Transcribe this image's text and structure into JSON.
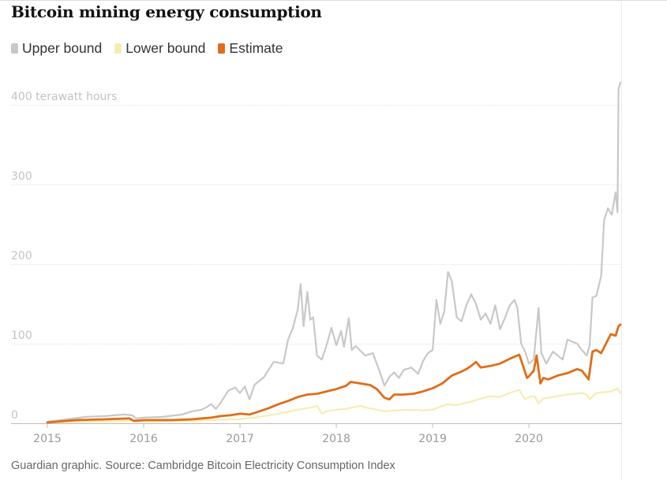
{
  "title": "Bitcoin mining energy consumption",
  "source": "Guardian graphic. Source: Cambridge Bitcoin Electricity Consumption Index",
  "chart_data": {
    "type": "line",
    "title": "Bitcoin mining energy consumption",
    "xlabel": "",
    "ylabel": "terawatt hours",
    "xlim": [
      2015.0,
      2020.95
    ],
    "ylim": [
      0,
      400
    ],
    "grid": true,
    "legend_position": "top-left",
    "y_ticks": [
      {
        "value": 0,
        "label": "0"
      },
      {
        "value": 100,
        "label": "100"
      },
      {
        "value": 200,
        "label": "200"
      },
      {
        "value": 300,
        "label": "300"
      },
      {
        "value": 400,
        "label": "400 terawatt hours"
      }
    ],
    "x_ticks": [
      {
        "value": 2015,
        "label": "2015"
      },
      {
        "value": 2016,
        "label": "2016"
      },
      {
        "value": 2017,
        "label": "2017"
      },
      {
        "value": 2018,
        "label": "2018"
      },
      {
        "value": 2019,
        "label": "2019"
      },
      {
        "value": 2020,
        "label": "2020"
      }
    ],
    "series": [
      {
        "name": "Upper bound",
        "color": "#c8c8c8",
        "points": [
          [
            2015.0,
            2
          ],
          [
            2015.2,
            5
          ],
          [
            2015.4,
            8
          ],
          [
            2015.6,
            9
          ],
          [
            2015.8,
            11
          ],
          [
            2015.88,
            10
          ],
          [
            2015.92,
            6
          ],
          [
            2016.0,
            7
          ],
          [
            2016.2,
            8
          ],
          [
            2016.4,
            11
          ],
          [
            2016.5,
            15
          ],
          [
            2016.6,
            17
          ],
          [
            2016.65,
            20
          ],
          [
            2016.7,
            24
          ],
          [
            2016.75,
            18
          ],
          [
            2016.8,
            26
          ],
          [
            2016.88,
            41
          ],
          [
            2016.95,
            45
          ],
          [
            2017.0,
            38
          ],
          [
            2017.05,
            46
          ],
          [
            2017.1,
            30
          ],
          [
            2017.15,
            48
          ],
          [
            2017.25,
            58
          ],
          [
            2017.35,
            77
          ],
          [
            2017.45,
            75
          ],
          [
            2017.5,
            105
          ],
          [
            2017.55,
            120
          ],
          [
            2017.6,
            143
          ],
          [
            2017.63,
            175
          ],
          [
            2017.66,
            122
          ],
          [
            2017.7,
            165
          ],
          [
            2017.73,
            130
          ],
          [
            2017.76,
            133
          ],
          [
            2017.8,
            85
          ],
          [
            2017.85,
            80
          ],
          [
            2017.9,
            98
          ],
          [
            2017.95,
            120
          ],
          [
            2018.0,
            98
          ],
          [
            2018.05,
            116
          ],
          [
            2018.08,
            96
          ],
          [
            2018.13,
            132
          ],
          [
            2018.16,
            92
          ],
          [
            2018.2,
            97
          ],
          [
            2018.3,
            85
          ],
          [
            2018.38,
            88
          ],
          [
            2018.45,
            65
          ],
          [
            2018.5,
            47
          ],
          [
            2018.55,
            58
          ],
          [
            2018.6,
            64
          ],
          [
            2018.65,
            57
          ],
          [
            2018.7,
            67
          ],
          [
            2018.78,
            70
          ],
          [
            2018.85,
            62
          ],
          [
            2018.9,
            78
          ],
          [
            2018.95,
            88
          ],
          [
            2019.0,
            92
          ],
          [
            2019.04,
            155
          ],
          [
            2019.08,
            125
          ],
          [
            2019.12,
            140
          ],
          [
            2019.16,
            190
          ],
          [
            2019.2,
            178
          ],
          [
            2019.25,
            133
          ],
          [
            2019.3,
            128
          ],
          [
            2019.35,
            148
          ],
          [
            2019.4,
            162
          ],
          [
            2019.45,
            150
          ],
          [
            2019.5,
            130
          ],
          [
            2019.55,
            138
          ],
          [
            2019.6,
            125
          ],
          [
            2019.65,
            148
          ],
          [
            2019.7,
            118
          ],
          [
            2019.75,
            132
          ],
          [
            2019.8,
            148
          ],
          [
            2019.85,
            155
          ],
          [
            2019.88,
            145
          ],
          [
            2019.92,
            100
          ],
          [
            2019.96,
            90
          ],
          [
            2020.0,
            75
          ],
          [
            2020.05,
            80
          ],
          [
            2020.1,
            145
          ],
          [
            2020.13,
            88
          ],
          [
            2020.18,
            75
          ],
          [
            2020.25,
            90
          ],
          [
            2020.35,
            80
          ],
          [
            2020.4,
            105
          ],
          [
            2020.5,
            100
          ],
          [
            2020.55,
            92
          ],
          [
            2020.6,
            85
          ],
          [
            2020.63,
            98
          ],
          [
            2020.66,
            158
          ],
          [
            2020.7,
            160
          ],
          [
            2020.75,
            185
          ],
          [
            2020.78,
            255
          ],
          [
            2020.82,
            270
          ],
          [
            2020.86,
            262
          ],
          [
            2020.9,
            290
          ],
          [
            2020.92,
            265
          ],
          [
            2020.93,
            420
          ],
          [
            2020.95,
            428
          ]
        ]
      },
      {
        "name": "Lower bound",
        "color": "#f6edb2",
        "points": [
          [
            2015.0,
            1
          ],
          [
            2015.5,
            2
          ],
          [
            2015.88,
            3
          ],
          [
            2015.92,
            2
          ],
          [
            2016.0,
            2
          ],
          [
            2016.5,
            3
          ],
          [
            2016.7,
            4
          ],
          [
            2016.9,
            5
          ],
          [
            2017.0,
            5
          ],
          [
            2017.2,
            8
          ],
          [
            2017.4,
            12
          ],
          [
            2017.6,
            17
          ],
          [
            2017.75,
            20
          ],
          [
            2017.8,
            22
          ],
          [
            2017.85,
            12
          ],
          [
            2017.9,
            15
          ],
          [
            2018.0,
            17
          ],
          [
            2018.1,
            18
          ],
          [
            2018.25,
            22
          ],
          [
            2018.3,
            20
          ],
          [
            2018.5,
            15
          ],
          [
            2018.6,
            16
          ],
          [
            2018.8,
            17
          ],
          [
            2018.9,
            16
          ],
          [
            2019.0,
            17
          ],
          [
            2019.15,
            24
          ],
          [
            2019.25,
            23
          ],
          [
            2019.4,
            27
          ],
          [
            2019.5,
            31
          ],
          [
            2019.6,
            34
          ],
          [
            2019.7,
            33
          ],
          [
            2019.8,
            38
          ],
          [
            2019.9,
            42
          ],
          [
            2019.96,
            30
          ],
          [
            2020.0,
            33
          ],
          [
            2020.06,
            34
          ],
          [
            2020.1,
            25
          ],
          [
            2020.15,
            31
          ],
          [
            2020.25,
            33
          ],
          [
            2020.4,
            36
          ],
          [
            2020.55,
            38
          ],
          [
            2020.6,
            36
          ],
          [
            2020.63,
            30
          ],
          [
            2020.7,
            38
          ],
          [
            2020.85,
            40
          ],
          [
            2020.92,
            44
          ],
          [
            2020.95,
            38
          ]
        ]
      },
      {
        "name": "Estimate",
        "color": "#e06d17",
        "points": [
          [
            2015.0,
            1
          ],
          [
            2015.3,
            4
          ],
          [
            2015.6,
            5
          ],
          [
            2015.85,
            6
          ],
          [
            2015.9,
            3
          ],
          [
            2016.0,
            4
          ],
          [
            2016.3,
            4
          ],
          [
            2016.5,
            5
          ],
          [
            2016.7,
            7
          ],
          [
            2016.8,
            9
          ],
          [
            2016.9,
            10
          ],
          [
            2017.0,
            12
          ],
          [
            2017.1,
            11
          ],
          [
            2017.2,
            15
          ],
          [
            2017.3,
            19
          ],
          [
            2017.4,
            24
          ],
          [
            2017.5,
            28
          ],
          [
            2017.6,
            33
          ],
          [
            2017.7,
            36
          ],
          [
            2017.8,
            37
          ],
          [
            2017.9,
            40
          ],
          [
            2018.0,
            43
          ],
          [
            2018.1,
            47
          ],
          [
            2018.15,
            52
          ],
          [
            2018.25,
            50
          ],
          [
            2018.35,
            48
          ],
          [
            2018.42,
            43
          ],
          [
            2018.5,
            32
          ],
          [
            2018.55,
            30
          ],
          [
            2018.6,
            36
          ],
          [
            2018.7,
            36
          ],
          [
            2018.8,
            37
          ],
          [
            2018.9,
            40
          ],
          [
            2019.0,
            44
          ],
          [
            2019.1,
            50
          ],
          [
            2019.2,
            60
          ],
          [
            2019.3,
            65
          ],
          [
            2019.35,
            68
          ],
          [
            2019.4,
            72
          ],
          [
            2019.45,
            77
          ],
          [
            2019.5,
            70
          ],
          [
            2019.6,
            72
          ],
          [
            2019.7,
            75
          ],
          [
            2019.8,
            81
          ],
          [
            2019.9,
            86
          ],
          [
            2019.95,
            68
          ],
          [
            2019.98,
            57
          ],
          [
            2020.0,
            59
          ],
          [
            2020.05,
            66
          ],
          [
            2020.08,
            85
          ],
          [
            2020.12,
            50
          ],
          [
            2020.15,
            57
          ],
          [
            2020.2,
            55
          ],
          [
            2020.3,
            60
          ],
          [
            2020.4,
            63
          ],
          [
            2020.5,
            68
          ],
          [
            2020.55,
            66
          ],
          [
            2020.62,
            55
          ],
          [
            2020.66,
            90
          ],
          [
            2020.7,
            92
          ],
          [
            2020.75,
            88
          ],
          [
            2020.8,
            100
          ],
          [
            2020.85,
            112
          ],
          [
            2020.9,
            110
          ],
          [
            2020.93,
            122
          ],
          [
            2020.95,
            124
          ]
        ]
      }
    ]
  }
}
